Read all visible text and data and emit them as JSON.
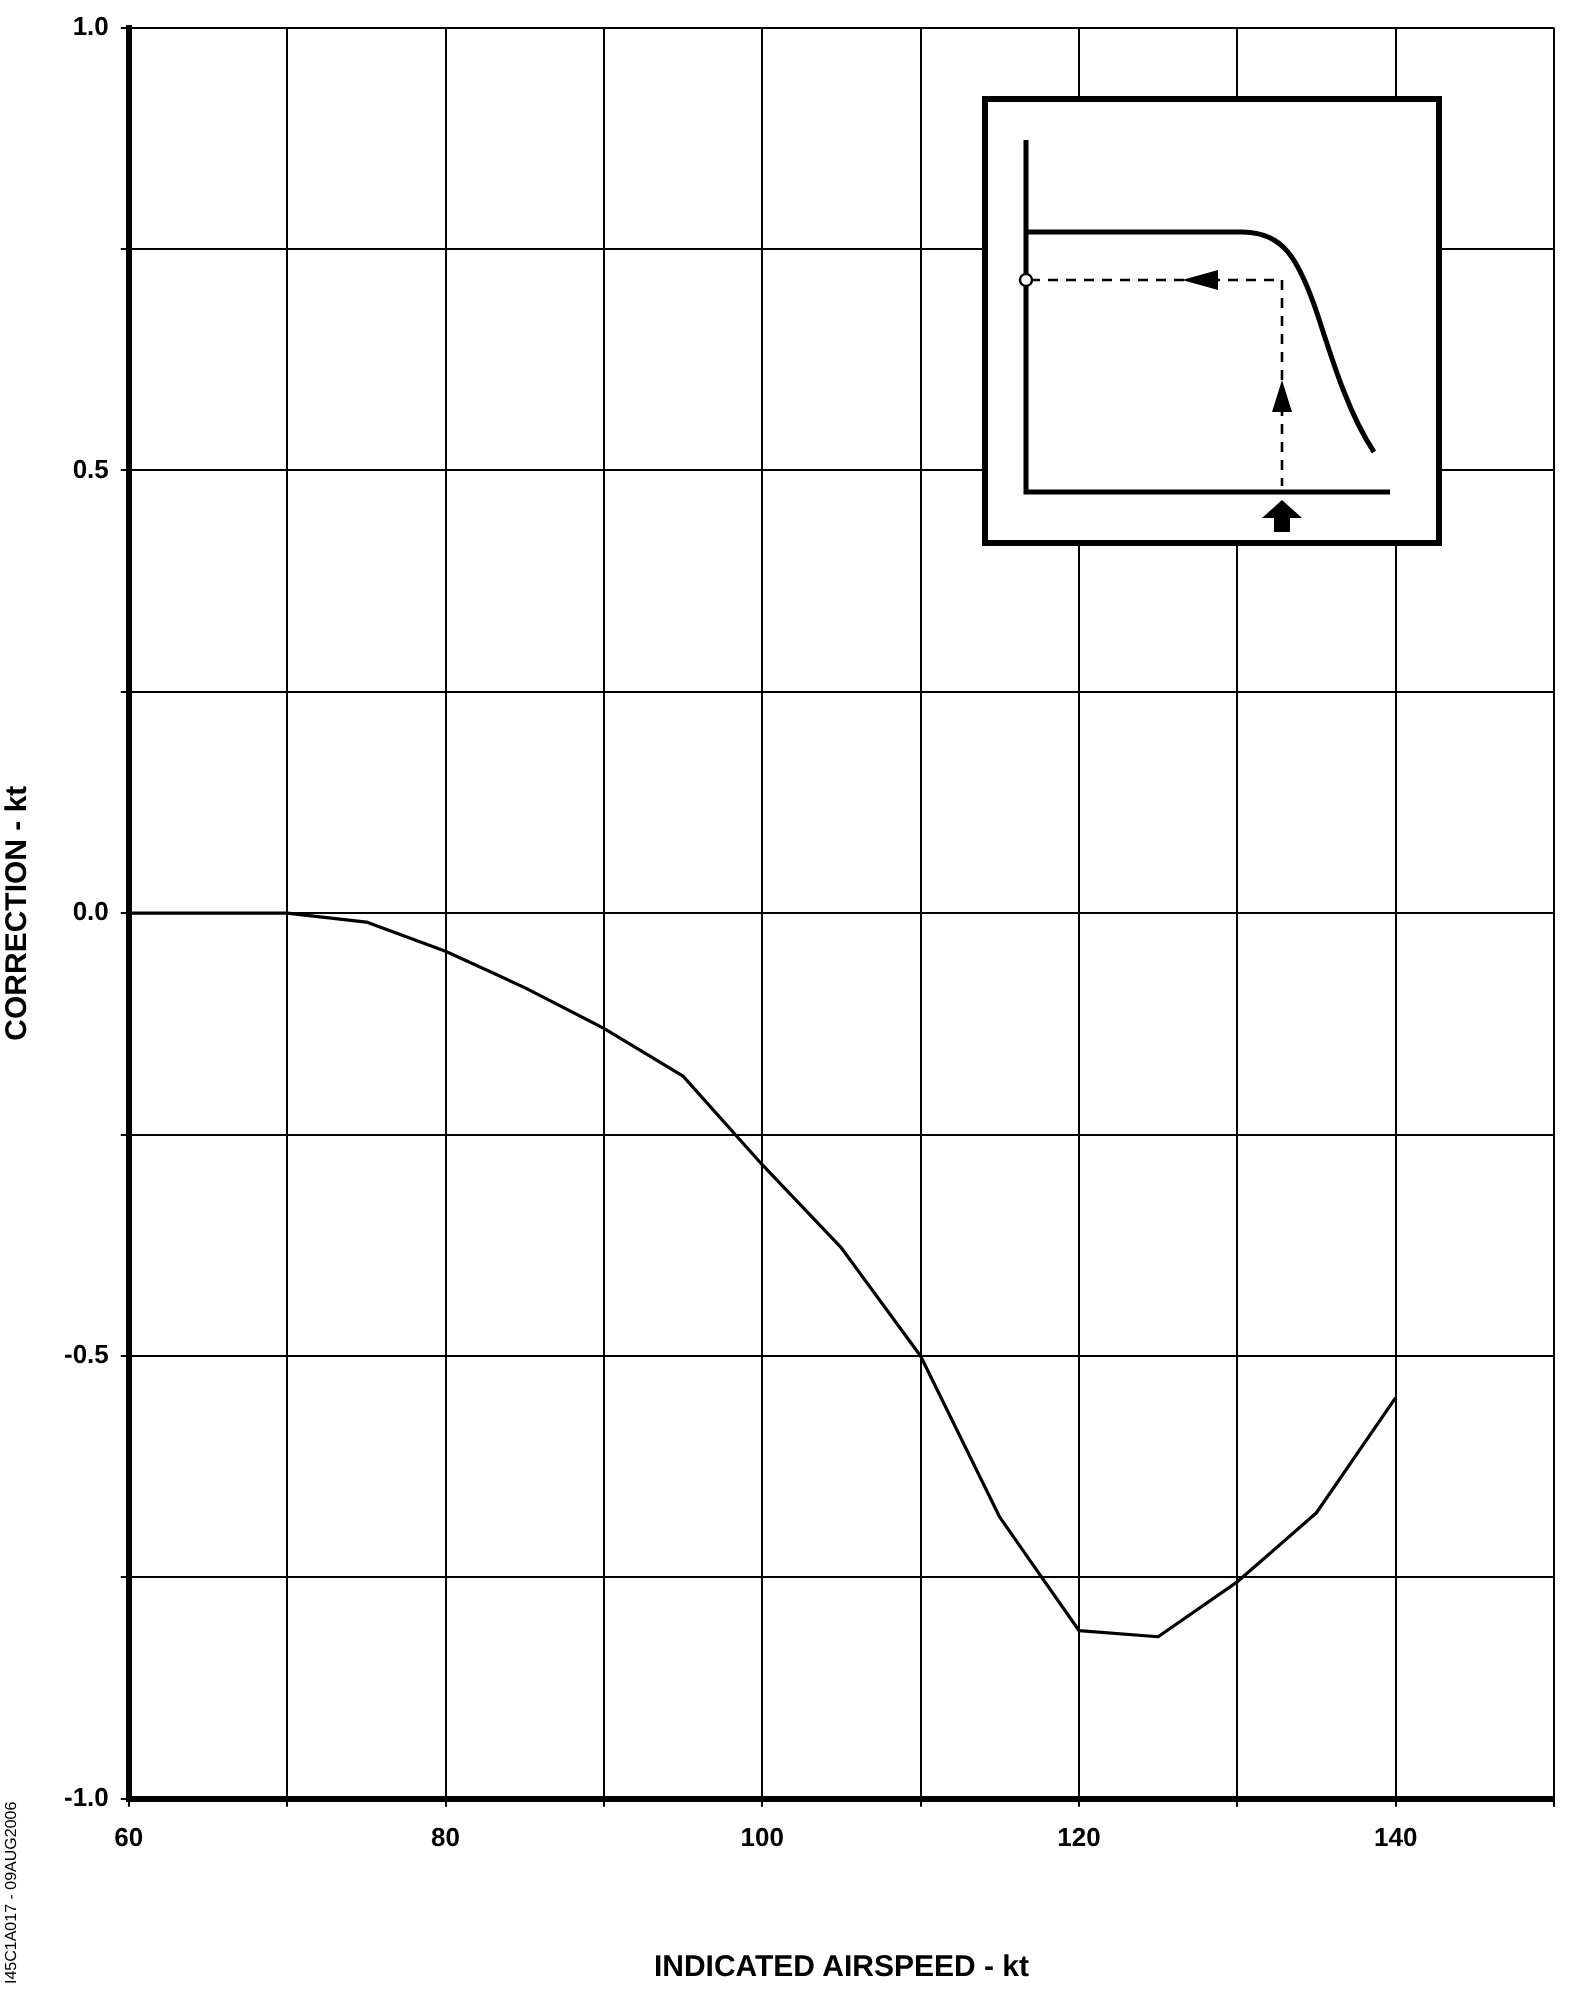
{
  "chart_data": {
    "type": "line",
    "xlabel": "INDICATED AIRSPEED - kt",
    "ylabel": "CORRECTION - kt",
    "x": [
      60,
      70,
      75,
      80,
      85,
      90,
      95,
      100,
      105,
      110,
      115,
      120,
      125,
      130,
      135,
      140
    ],
    "series": [
      {
        "color": "#000000",
        "values": [
          0,
          0,
          -0.01,
          -0.043,
          -0.084,
          -0.13,
          -0.184,
          -0.284,
          -0.378,
          -0.5,
          -0.682,
          -0.81,
          -0.817,
          -0.755,
          -0.677,
          -0.547
        ]
      }
    ],
    "xlim": [
      60,
      150
    ],
    "xticks": [
      60,
      {
        "value": 70,
        "label": null
      },
      80,
      {
        "value": 90,
        "label": null
      },
      100,
      {
        "value": 110,
        "label": null
      },
      120,
      {
        "value": 130,
        "label": null
      },
      140,
      {
        "value": 150,
        "label": null
      }
    ],
    "ylim": [
      -1,
      1
    ],
    "yticks": [
      {
        "value": -1,
        "label": "-1.0"
      },
      {
        "value": -0.75,
        "label": null
      },
      {
        "value": -0.5,
        "label": "-0.5"
      },
      {
        "value": -0.25,
        "label": null
      },
      {
        "value": 0,
        "label": "0.0"
      },
      {
        "value": 0.25,
        "label": null
      },
      {
        "value": 0.5,
        "label": "0.5"
      },
      {
        "value": 0.75,
        "label": null
      },
      {
        "value": 1,
        "label": "1.0"
      }
    ],
    "grid": true,
    "legend": false,
    "marker": "none",
    "line_style": "solid",
    "annotations": [
      "I45C1A017 - 09AUG2006"
    ]
  }
}
